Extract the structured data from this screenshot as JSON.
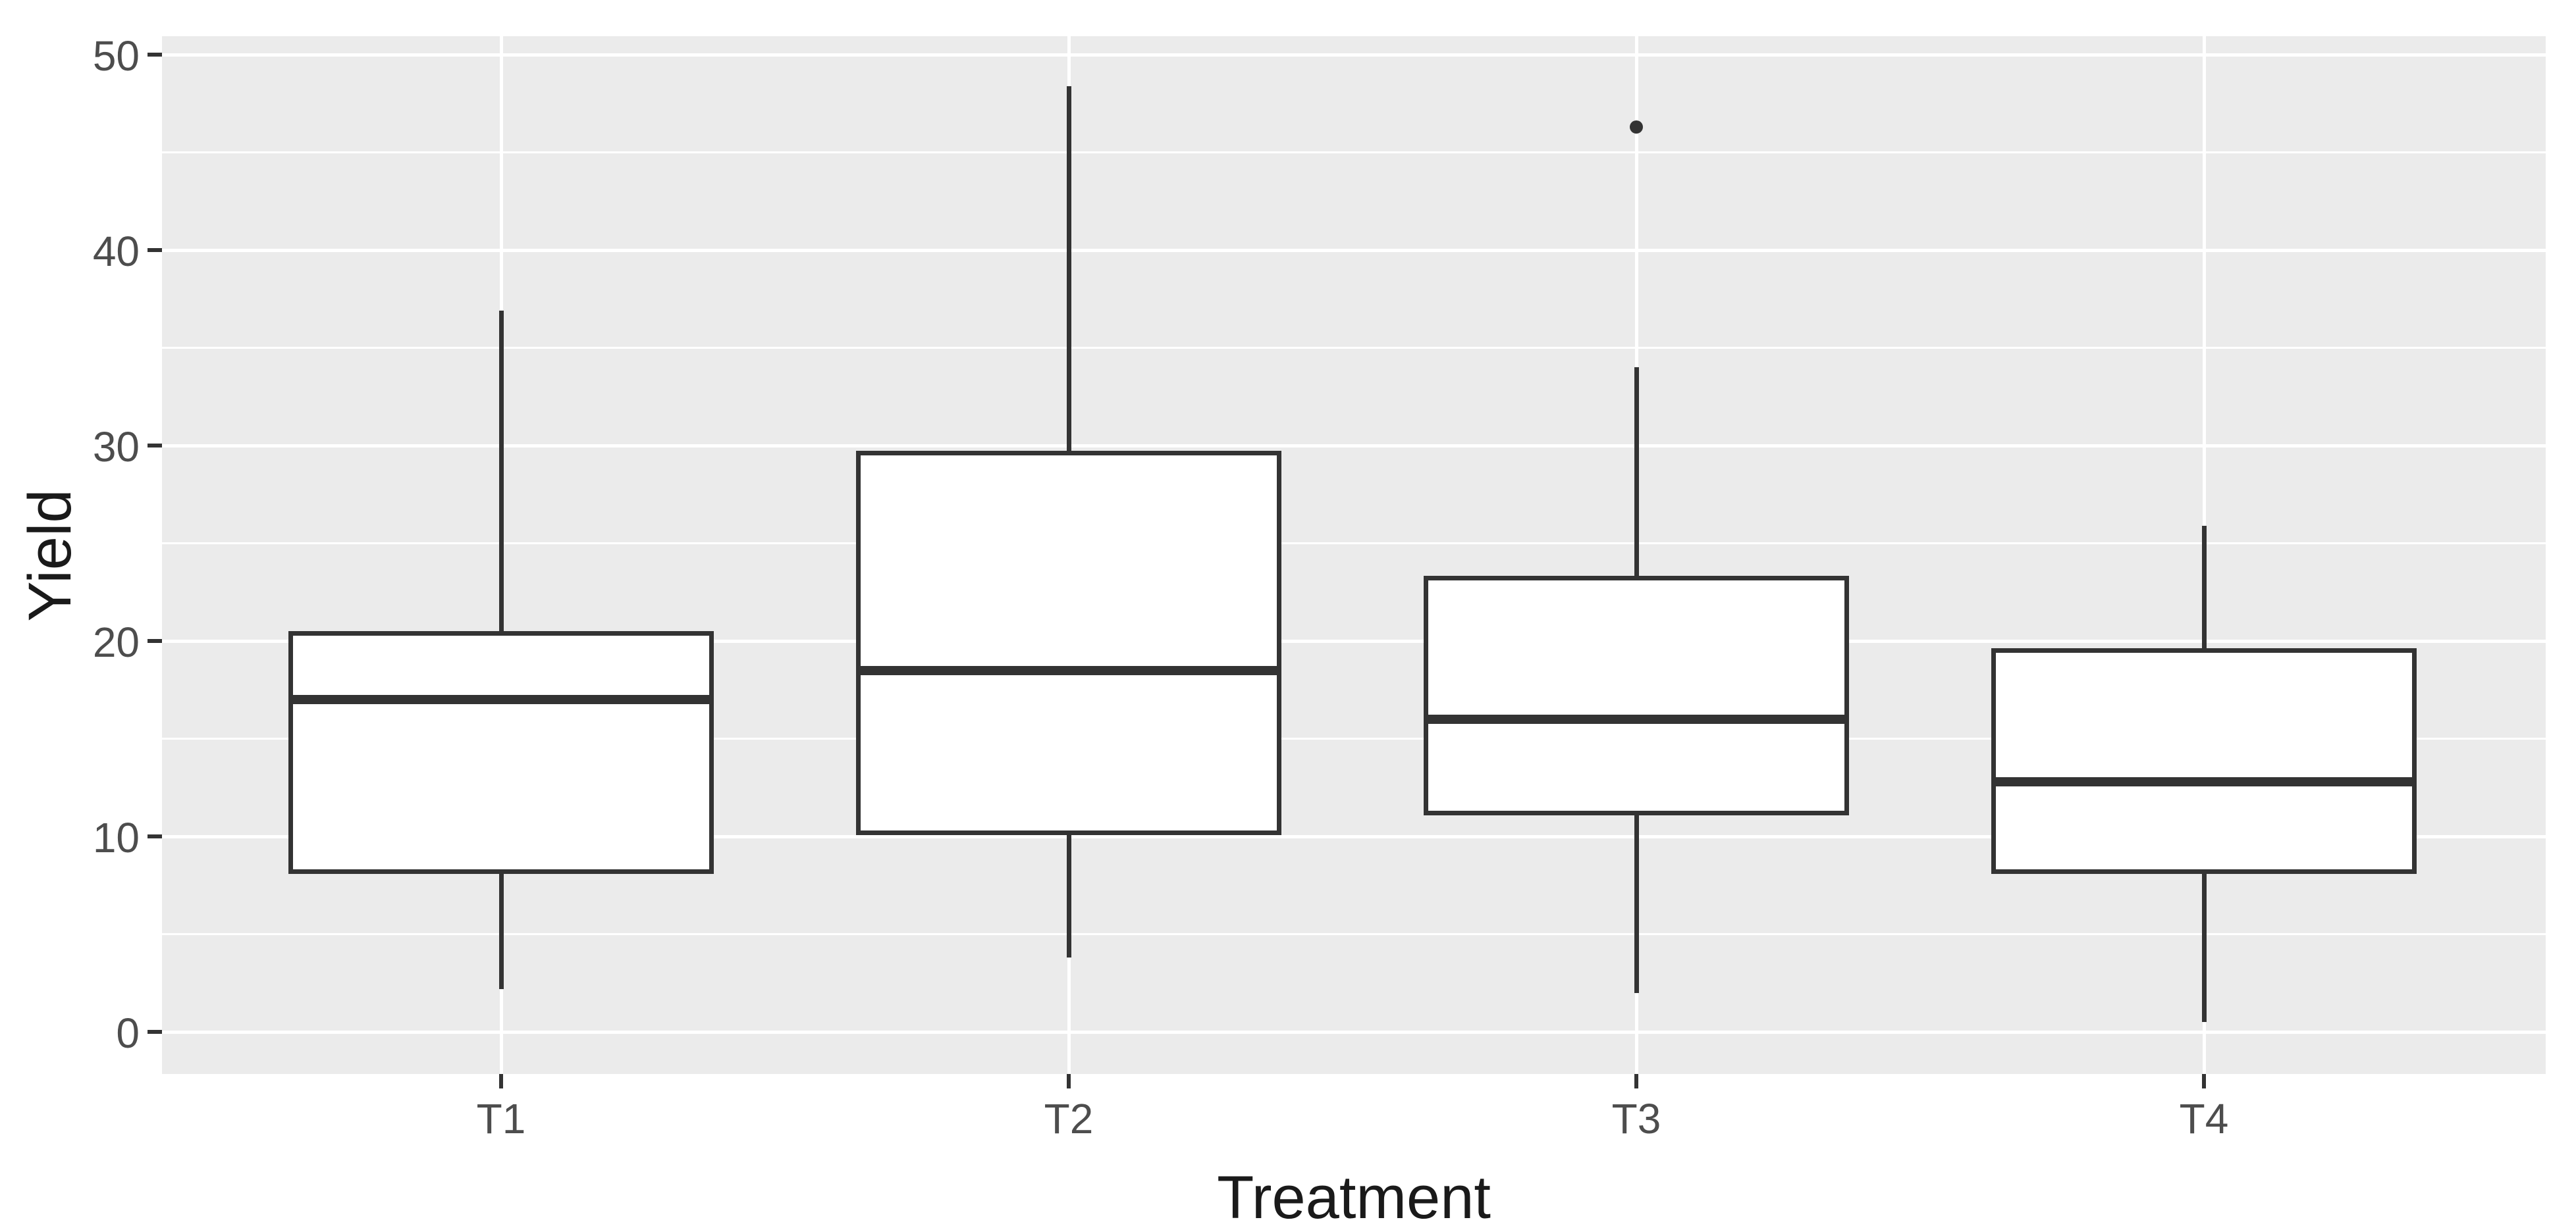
{
  "chart_data": {
    "type": "boxplot",
    "title": "",
    "xlabel": "Treatment",
    "ylabel": "Yield",
    "categories": [
      "T1",
      "T2",
      "T3",
      "T4"
    ],
    "y_ticks": [
      0,
      10,
      20,
      30,
      40,
      50
    ],
    "y_tick_labels": [
      "0",
      "10",
      "20",
      "30",
      "40",
      "50"
    ],
    "y_minor_ticks": [
      5,
      15,
      25,
      35,
      45
    ],
    "ylim": [
      -2,
      51
    ],
    "grid": "horizontal major+minor white lines and one vertical white line per category on grey panel",
    "legend": "none",
    "series": [
      {
        "category": "T1",
        "whisker_low": 2.2,
        "q1": 8.2,
        "median": 17.0,
        "q3": 20.4,
        "whisker_high": 36.9,
        "outliers": []
      },
      {
        "category": "T2",
        "whisker_low": 3.8,
        "q1": 10.2,
        "median": 18.5,
        "q3": 29.6,
        "whisker_high": 48.4,
        "outliers": []
      },
      {
        "category": "T3",
        "whisker_low": 2.0,
        "q1": 11.2,
        "median": 16.0,
        "q3": 23.2,
        "whisker_high": 34.0,
        "outliers": [
          46.3
        ]
      },
      {
        "category": "T4",
        "whisker_low": 0.5,
        "q1": 8.2,
        "median": 12.8,
        "q3": 19.5,
        "whisker_high": 25.9,
        "outliers": []
      }
    ]
  },
  "x_axis": {
    "title": "Treatment",
    "tick_labels": [
      "T1",
      "T2",
      "T3",
      "T4"
    ]
  },
  "y_axis": {
    "title": "Yield",
    "tick_labels": [
      "0",
      "10",
      "20",
      "30",
      "40",
      "50"
    ]
  },
  "style": {
    "panel_bg": "#EBEBEB",
    "gridline_color": "#FFFFFF",
    "box_fill": "#FFFFFF",
    "box_stroke": "#333333",
    "outlier_color": "#333333",
    "tick_mark_color": "#333333",
    "tick_label_color": "#4D4D4D",
    "axis_title_color": "#1A1A1A"
  }
}
